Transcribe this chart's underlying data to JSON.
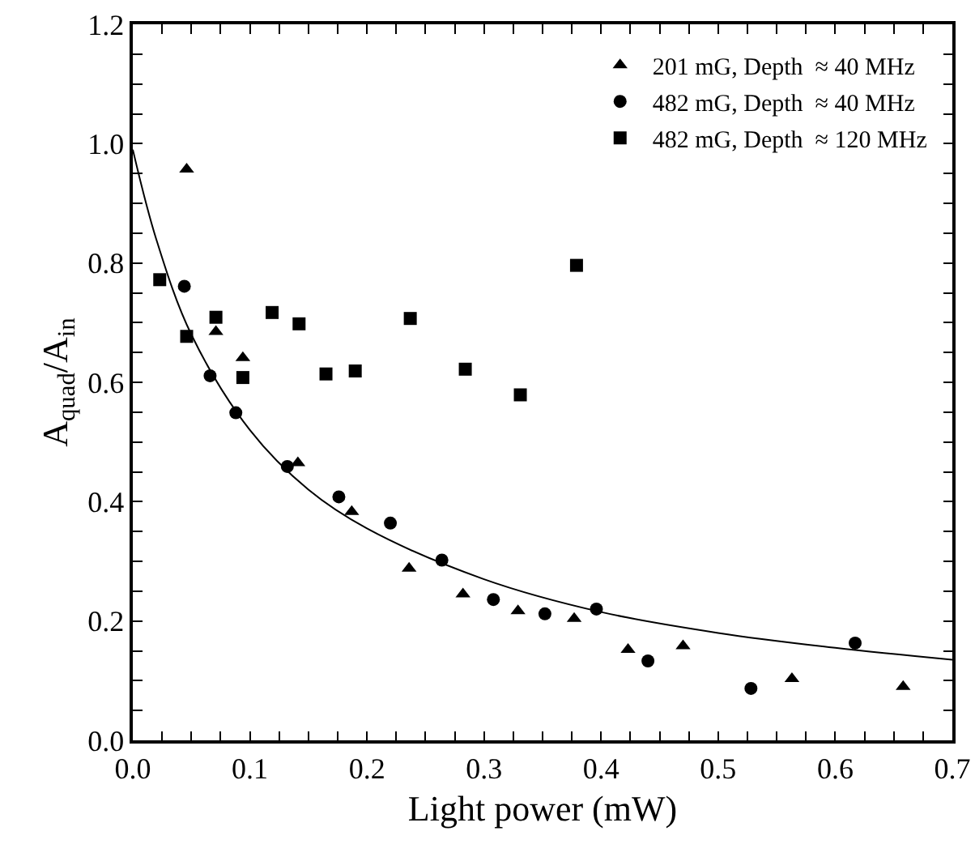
{
  "chart_data": {
    "type": "scatter",
    "xlabel": "Light power (mW)",
    "ylabel": "A$_{quad}$/A$_{in}$",
    "xlim": [
      0,
      0.7
    ],
    "ylim": [
      0,
      1.2
    ],
    "xticks": [
      {
        "value": 0,
        "label": "0.0"
      },
      {
        "value": 0.025,
        "label": null
      },
      {
        "value": 0.05,
        "label": null
      },
      {
        "value": 0.075,
        "label": null
      },
      0.1,
      {
        "value": 0.125,
        "label": null
      },
      {
        "value": 0.15,
        "label": null
      },
      {
        "value": 0.175,
        "label": null
      },
      0.2,
      {
        "value": 0.225,
        "label": null
      },
      {
        "value": 0.25,
        "label": null
      },
      {
        "value": 0.275,
        "label": null
      },
      0.3,
      {
        "value": 0.325,
        "label": null
      },
      {
        "value": 0.35,
        "label": null
      },
      {
        "value": 0.375,
        "label": null
      },
      0.4,
      {
        "value": 0.425,
        "label": null
      },
      {
        "value": 0.45,
        "label": null
      },
      {
        "value": 0.475,
        "label": null
      },
      0.5,
      {
        "value": 0.525,
        "label": null
      },
      {
        "value": 0.55,
        "label": null
      },
      {
        "value": 0.575,
        "label": null
      },
      0.6,
      {
        "value": 0.625,
        "label": null
      },
      {
        "value": 0.65,
        "label": null
      },
      {
        "value": 0.675,
        "label": null
      },
      0.7
    ],
    "yticks": [
      {
        "value": 0,
        "label": "0.0"
      },
      {
        "value": 0.05,
        "label": null
      },
      {
        "value": 0.1,
        "label": null
      },
      {
        "value": 0.15,
        "label": null
      },
      0.2,
      {
        "value": 0.25,
        "label": null
      },
      {
        "value": 0.3,
        "label": null
      },
      {
        "value": 0.35,
        "label": null
      },
      0.4,
      {
        "value": 0.45,
        "label": null
      },
      {
        "value": 0.5,
        "label": null
      },
      {
        "value": 0.55,
        "label": null
      },
      0.6,
      {
        "value": 0.65,
        "label": null
      },
      {
        "value": 0.7,
        "label": null
      },
      {
        "value": 0.75,
        "label": null
      },
      0.8,
      {
        "value": 0.85,
        "label": null
      },
      {
        "value": 0.9,
        "label": null
      },
      {
        "value": 0.95,
        "label": null
      },
      {
        "value": 1.0,
        "label": "1.0"
      },
      {
        "value": 1.05,
        "label": null
      },
      {
        "value": 1.1,
        "label": null
      },
      {
        "value": 1.15,
        "label": null
      },
      1.2
    ],
    "grid": false,
    "legend": "top right",
    "series": [
      {
        "name": "201 mG, Depth  ≈ 40 MHz",
        "color": "#000000",
        "marker": "triangle",
        "x": [
          0.046,
          0.071,
          0.094,
          0.141,
          0.187,
          0.236,
          0.282,
          0.329,
          0.377,
          0.423,
          0.47,
          0.563,
          0.658
        ],
        "values": [
          0.957,
          0.685,
          0.641,
          0.465,
          0.383,
          0.288,
          0.245,
          0.217,
          0.204,
          0.152,
          0.158,
          0.103,
          0.09
        ]
      },
      {
        "name": "482 mG, Depth  ≈ 40 MHz",
        "color": "#000000",
        "marker": "circle",
        "x": [
          0.044,
          0.066,
          0.088,
          0.132,
          0.176,
          0.22,
          0.264,
          0.308,
          0.352,
          0.396,
          0.44,
          0.528,
          0.617
        ],
        "values": [
          0.761,
          0.611,
          0.549,
          0.459,
          0.408,
          0.364,
          0.302,
          0.236,
          0.212,
          0.22,
          0.133,
          0.087,
          0.163
        ]
      },
      {
        "name": "482 mG, Depth  ≈ 120 MHz",
        "color": "#000000",
        "marker": "square",
        "x": [
          0.023,
          0.046,
          0.071,
          0.094,
          0.119,
          0.142,
          0.165,
          0.19,
          0.237,
          0.284,
          0.331,
          0.379
        ],
        "values": [
          0.772,
          0.677,
          0.709,
          0.608,
          0.717,
          0.698,
          0.614,
          0.619,
          0.707,
          0.622,
          0.579,
          0.796
        ]
      },
      {
        "type": "line",
        "color": "#000000",
        "marker": "none",
        "line_style": "solid",
        "x": [
          0,
          0.02,
          0.05,
          0.1,
          0.15,
          0.2,
          0.3,
          0.4,
          0.5,
          0.6,
          0.7
        ],
        "values": [
          0.99,
          0.84,
          0.68,
          0.52,
          0.42,
          0.355,
          0.27,
          0.215,
          0.18,
          0.155,
          0.135
        ]
      }
    ]
  }
}
